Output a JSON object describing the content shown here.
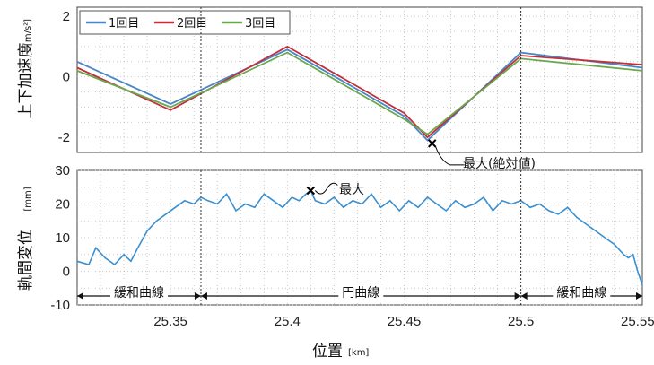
{
  "chart_data": [
    {
      "type": "line",
      "ylabel": "上下加速度",
      "yunit": "[m/s²]",
      "ylim": [
        -2.5,
        2.3
      ],
      "yticks": [
        -2,
        0,
        2
      ],
      "xlim": [
        25.31,
        25.552
      ],
      "grid": true,
      "legend_position": "top-left",
      "colors": [
        "#4a86c6",
        "#c0303c",
        "#6aa84f"
      ],
      "series": [
        {
          "name": "1回目",
          "x": [
            25.31,
            25.35,
            25.4,
            25.45,
            25.46,
            25.5,
            25.552
          ],
          "values": [
            0.5,
            -0.9,
            0.9,
            -1.3,
            -2.1,
            0.8,
            0.3
          ]
        },
        {
          "name": "2回目",
          "x": [
            25.31,
            25.35,
            25.4,
            25.45,
            25.46,
            25.5,
            25.552
          ],
          "values": [
            0.3,
            -1.1,
            1.0,
            -1.2,
            -2.0,
            0.7,
            0.4
          ]
        },
        {
          "name": "3回目",
          "x": [
            25.31,
            25.35,
            25.4,
            25.45,
            25.46,
            25.5,
            25.552
          ],
          "values": [
            0.2,
            -1.0,
            0.8,
            -1.4,
            -1.9,
            0.6,
            0.2
          ]
        }
      ],
      "annotation": {
        "label": "最大(絶対値)",
        "x": 25.462,
        "y": -2.2
      }
    },
    {
      "type": "line",
      "ylabel": "軌間変位",
      "yunit": "[mm]",
      "ylim": [
        -10,
        30
      ],
      "yticks": [
        -10,
        0,
        10,
        20,
        30
      ],
      "xlim": [
        25.31,
        25.552
      ],
      "xticks": [
        25.35,
        25.4,
        25.45,
        25.5,
        25.55
      ],
      "xticklabels": [
        "25.35",
        "25.4",
        "25.45",
        "25.5",
        "25.55"
      ],
      "xlabel": "位置",
      "xunit": "[km]",
      "grid": true,
      "color": "#3a8fd0",
      "x": [
        25.31,
        25.315,
        25.318,
        25.322,
        25.326,
        25.33,
        25.333,
        25.336,
        25.34,
        25.344,
        25.348,
        25.352,
        25.356,
        25.36,
        25.363,
        25.366,
        25.37,
        25.374,
        25.378,
        25.382,
        25.386,
        25.39,
        25.394,
        25.398,
        25.402,
        25.405,
        25.408,
        25.41,
        25.412,
        25.416,
        25.42,
        25.424,
        25.428,
        25.432,
        25.436,
        25.44,
        25.444,
        25.448,
        25.452,
        25.456,
        25.46,
        25.464,
        25.468,
        25.472,
        25.476,
        25.48,
        25.484,
        25.488,
        25.492,
        25.496,
        25.5,
        25.504,
        25.508,
        25.512,
        25.516,
        25.52,
        25.524,
        25.528,
        25.532,
        25.536,
        25.54,
        25.544,
        25.546,
        25.548,
        25.55,
        25.552
      ],
      "values": [
        3,
        2,
        7,
        4,
        2,
        5,
        3,
        7,
        12,
        15,
        17,
        19,
        21,
        20,
        22,
        21,
        20,
        23,
        18,
        20,
        19,
        23,
        21,
        19,
        22,
        21,
        23,
        24,
        21,
        20,
        22,
        19,
        21,
        20,
        23,
        19,
        21,
        18,
        21,
        19,
        22,
        20,
        18,
        21,
        19,
        20,
        22,
        18,
        21,
        20,
        21,
        19,
        20,
        18,
        17,
        19,
        16,
        14,
        12,
        10,
        8,
        5,
        4,
        5,
        0,
        -4
      ],
      "annotation": {
        "label": "最大",
        "x": 25.41,
        "y": 24
      },
      "segments": [
        {
          "label": "緩和曲線",
          "from": 25.31,
          "to": 25.363
        },
        {
          "label": "円曲線",
          "from": 25.363,
          "to": 25.5
        },
        {
          "label": "緩和曲線",
          "from": 25.5,
          "to": 25.552
        }
      ]
    }
  ]
}
